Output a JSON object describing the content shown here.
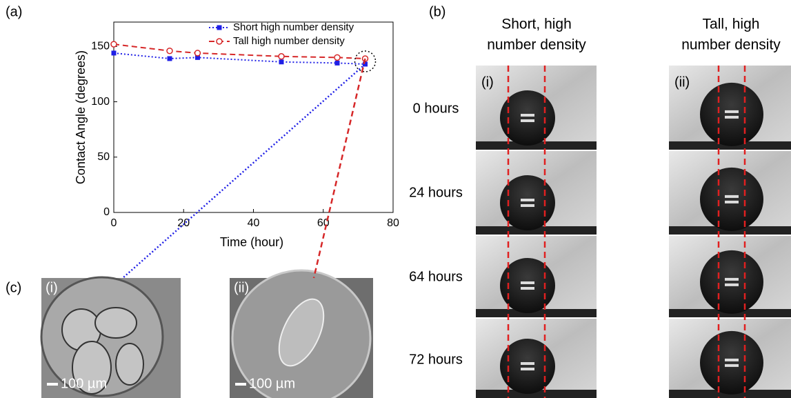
{
  "chart_data": {
    "type": "line",
    "xlabel": "Time (hour)",
    "ylabel": "Contact Angle (degrees)",
    "x": [
      0,
      16,
      24,
      48,
      64,
      72
    ],
    "series": [
      {
        "name": "Short high number density",
        "color": "#1f1fe6",
        "values": [
          144,
          139,
          140,
          136,
          135,
          134
        ]
      },
      {
        "name": "Tall high number density",
        "color": "#d62728",
        "values": [
          152,
          146,
          144,
          141,
          140,
          139
        ]
      }
    ],
    "xlim": [
      0,
      80
    ],
    "xticks": [
      0,
      20,
      40,
      60,
      80
    ],
    "ylim": [
      0,
      172
    ],
    "yticks": [
      0,
      50,
      100,
      150
    ],
    "legend": "upper right"
  },
  "panel_a": "(a)",
  "panel_b": {
    "label": "(b)",
    "columns": [
      [
        "Short, high",
        "number density"
      ],
      [
        "Tall, high",
        "number density"
      ]
    ],
    "image_labels": [
      "(i)",
      "(ii)"
    ],
    "rows": [
      "0 hours",
      "24 hours",
      "64 hours",
      "72 hours"
    ]
  },
  "panel_c": {
    "label": "(c)",
    "images": [
      {
        "label": "(i)",
        "scale": "100 µm"
      },
      {
        "label": "(ii)",
        "scale": "100 µm"
      }
    ]
  }
}
